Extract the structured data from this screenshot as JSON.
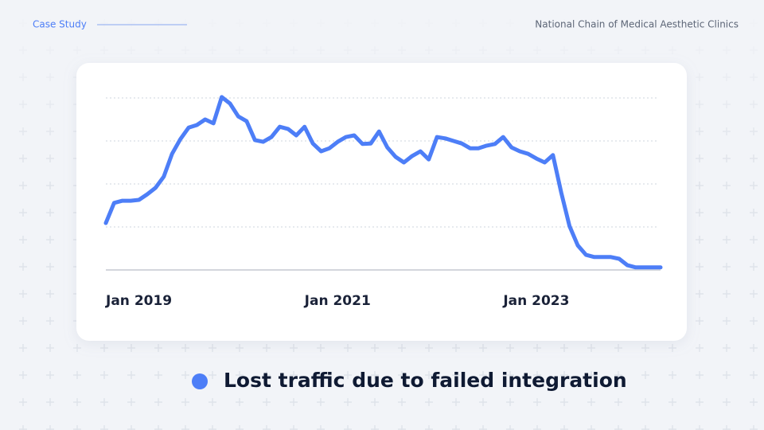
{
  "header": {
    "label": "Case Study",
    "client": "National Chain of Medical Aesthetic Clinics"
  },
  "chart_data": {
    "type": "line",
    "x": [
      "2019-01",
      "2019-02",
      "2019-03",
      "2019-04",
      "2019-05",
      "2019-06",
      "2019-07",
      "2019-08",
      "2019-09",
      "2019-10",
      "2019-11",
      "2019-12",
      "2020-01",
      "2020-02",
      "2020-03",
      "2020-04",
      "2020-05",
      "2020-06",
      "2020-07",
      "2020-08",
      "2020-09",
      "2020-10",
      "2020-11",
      "2020-12",
      "2021-01",
      "2021-02",
      "2021-03",
      "2021-04",
      "2021-05",
      "2021-06",
      "2021-07",
      "2021-08",
      "2021-09",
      "2021-10",
      "2021-11",
      "2021-12",
      "2022-01",
      "2022-02",
      "2022-03",
      "2022-04",
      "2022-05",
      "2022-06",
      "2022-07",
      "2022-08",
      "2022-09",
      "2022-10",
      "2022-11",
      "2022-12",
      "2023-01",
      "2023-02",
      "2023-03",
      "2023-04",
      "2023-05",
      "2023-06",
      "2023-07",
      "2023-08",
      "2023-09",
      "2023-10",
      "2023-11",
      "2023-12",
      "2024-01",
      "2024-02",
      "2024-03",
      "2024-04",
      "2024-05",
      "2024-06",
      "2024-07",
      "2024-08"
    ],
    "series": [
      {
        "name": "Lost traffic due to failed integration",
        "color": "#4d7ef7",
        "values": [
          1.09,
          1.56,
          1.61,
          1.61,
          1.63,
          1.76,
          1.91,
          2.17,
          2.7,
          3.04,
          3.31,
          3.37,
          3.5,
          3.41,
          4.02,
          3.87,
          3.57,
          3.46,
          3.02,
          2.98,
          3.09,
          3.33,
          3.28,
          3.13,
          3.33,
          2.94,
          2.76,
          2.83,
          2.98,
          3.09,
          3.13,
          2.93,
          2.94,
          3.22,
          2.85,
          2.63,
          2.5,
          2.65,
          2.76,
          2.57,
          3.09,
          3.06,
          3.0,
          2.94,
          2.83,
          2.83,
          2.89,
          2.93,
          3.09,
          2.85,
          2.76,
          2.7,
          2.59,
          2.5,
          2.67,
          1.8,
          1.02,
          0.57,
          0.35,
          0.3,
          0.3,
          0.3,
          0.26,
          0.11,
          0.06,
          0.06,
          0.06,
          0.06
        ]
      }
    ],
    "xticks": [
      {
        "value": "2019-01",
        "label": "Jan 2019"
      },
      {
        "value": "2021-01",
        "label": "Jan 2021"
      },
      {
        "value": "2023-01",
        "label": "Jan 2023"
      }
    ],
    "ylim": [
      0,
      4
    ],
    "yticks": [
      1,
      2,
      3,
      4
    ],
    "grid": true
  }
}
